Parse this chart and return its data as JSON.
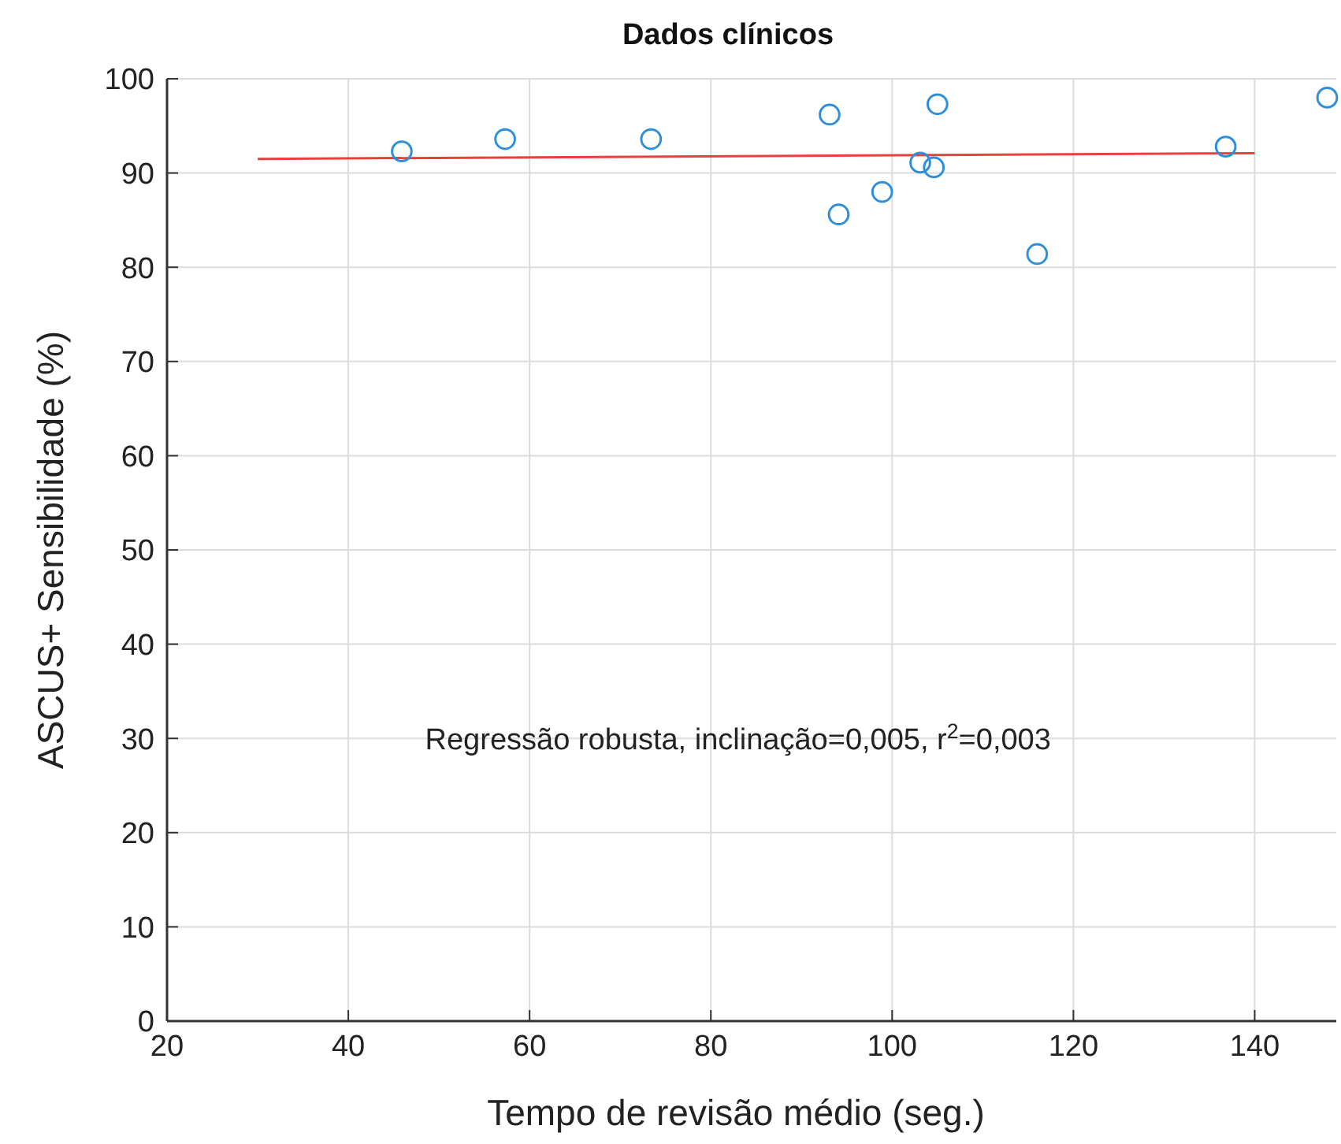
{
  "chart_data": {
    "type": "scatter",
    "title": "Dados clínicos",
    "xlabel": "Tempo de revisão médio (seg.)",
    "ylabel": "ASCUS+ Sensibilidade (%)",
    "xlim": [
      20,
      149
    ],
    "xticks": [
      20,
      40,
      60,
      80,
      100,
      120,
      140
    ],
    "ylim": [
      0,
      100
    ],
    "yticks": [
      0,
      10,
      20,
      30,
      40,
      50,
      60,
      70,
      80,
      90,
      100
    ],
    "grid": true,
    "series": [
      {
        "marker": "circle",
        "color": "#2f8fd8",
        "x": [
          45.9,
          57.3,
          73.4,
          93.1,
          94.1,
          98.9,
          103.1,
          104.6,
          105.0,
          116.0,
          136.8,
          148
        ],
        "values": [
          92.3,
          93.6,
          93.6,
          96.2,
          85.6,
          88.0,
          91.1,
          90.6,
          97.3,
          81.4,
          92.8,
          98.0
        ]
      },
      {
        "type": "line",
        "color": "#e8403c",
        "x": [
          30,
          140
        ],
        "values": [
          91.5,
          92.1
        ]
      }
    ],
    "annotations": [
      "Regressão robusta, inclinação=0,005, r$^{2}$=0,003"
    ]
  }
}
